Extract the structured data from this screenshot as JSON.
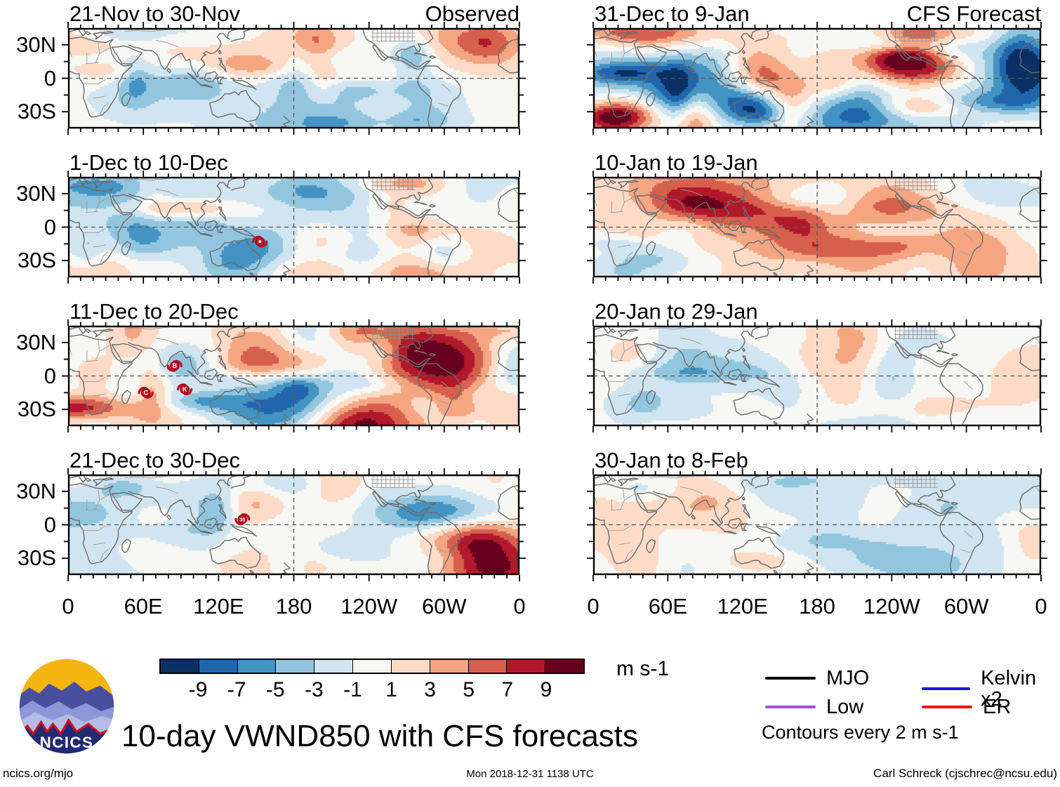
{
  "main_title": "10-day VWND850 with CFS forecasts",
  "footer": {
    "left": "ncics.org/mjo",
    "center": "Mon 2018-12-31 1138 UTC",
    "right": "Carl Schreck (cjschrec@ncsu.edu)"
  },
  "logo_text": "NCICS",
  "chart_data": {
    "type": "heatmap",
    "variable": "VWND850 anomaly",
    "unit": "m s-1",
    "layout": {
      "rows": 4,
      "cols": 2
    },
    "columns": [
      "Observed",
      "CFS Forecast"
    ],
    "panels": [
      {
        "id": "obs-1",
        "title": "21-Nov to 30-Nov",
        "tag": "Observed",
        "col": 0,
        "row": 0,
        "storms": []
      },
      {
        "id": "obs-2",
        "title": "1-Dec to 10-Dec",
        "tag": "",
        "col": 0,
        "row": 1,
        "storms": [
          {
            "label": "",
            "lon": 153,
            "lat": -13,
            "hemisphere": "S"
          }
        ]
      },
      {
        "id": "obs-3",
        "title": "11-Dec to 20-Dec",
        "tag": "",
        "col": 0,
        "row": 2,
        "storms": [
          {
            "label": "B",
            "lon": 85,
            "lat": 9,
            "hemisphere": "N"
          },
          {
            "label": "C",
            "lon": 62,
            "lat": -15,
            "hemisphere": "S"
          },
          {
            "label": "K",
            "lon": 93,
            "lat": -12,
            "hemisphere": "S"
          }
        ]
      },
      {
        "id": "obs-4",
        "title": "21-Dec to 30-Dec",
        "tag": "",
        "col": 0,
        "row": 3,
        "storms": [
          {
            "label": "30",
            "lon": 139,
            "lat": 5,
            "hemisphere": "N"
          }
        ]
      },
      {
        "id": "fcst-1",
        "title": "31-Dec to 9-Jan",
        "tag": "CFS Forecast",
        "col": 1,
        "row": 0,
        "storms": []
      },
      {
        "id": "fcst-2",
        "title": "10-Jan to 19-Jan",
        "tag": "",
        "col": 1,
        "row": 1,
        "storms": []
      },
      {
        "id": "fcst-3",
        "title": "20-Jan to 29-Jan",
        "tag": "",
        "col": 1,
        "row": 2,
        "storms": []
      },
      {
        "id": "fcst-4",
        "title": "30-Jan to 8-Feb",
        "tag": "",
        "col": 1,
        "row": 3,
        "storms": []
      }
    ],
    "x_axis": {
      "labels": [
        "0",
        "60E",
        "120E",
        "180",
        "120W",
        "60W",
        "0"
      ],
      "degrees": [
        0,
        60,
        120,
        180,
        240,
        300,
        360
      ]
    },
    "y_axis": {
      "labels": [
        "30N",
        "0",
        "30S"
      ],
      "lats": [
        30,
        0,
        -30
      ],
      "range_lat": [
        45,
        -45
      ]
    },
    "colorbar": {
      "unit": "m s-1",
      "tick_labels": [
        "-9",
        "-7",
        "-5",
        "-3",
        "-1",
        "1",
        "3",
        "5",
        "7",
        "9"
      ],
      "levels": [
        -9,
        -7,
        -5,
        -3,
        -1,
        1,
        3,
        5,
        7,
        9
      ],
      "colors": [
        "#0a3163",
        "#2166ac",
        "#4393c3",
        "#92c5de",
        "#d1e5f0",
        "#f7f7f3",
        "#fddbc7",
        "#f4a582",
        "#d6604d",
        "#b2182b",
        "#67001f"
      ]
    },
    "legend": [
      {
        "label": "MJO",
        "color": "#000000"
      },
      {
        "label": "Low",
        "color": "#9b4fd8"
      },
      {
        "label": "Kelvin x2",
        "color": "#1a12e8"
      },
      {
        "label": "ER",
        "color": "#f01515"
      }
    ],
    "contour_note": "Contours every 2 m s-1"
  }
}
